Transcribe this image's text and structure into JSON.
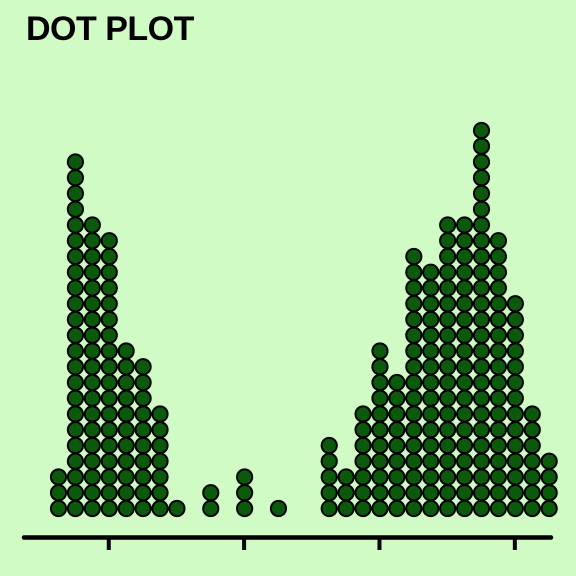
{
  "chart_data": {
    "type": "dotplot",
    "title": "DOT PLOT",
    "xlabel": "",
    "ylabel": "",
    "tick_labels_shown": false,
    "grid": false,
    "legend": "none",
    "colors": {
      "background": "#d1fbc5",
      "dot_fill": "#0b5a0b",
      "dot_stroke": "#000000",
      "axis": "#000000"
    },
    "columns": [
      {
        "bin": 0,
        "count": 3
      },
      {
        "bin": 1,
        "count": 23
      },
      {
        "bin": 2,
        "count": 19
      },
      {
        "bin": 3,
        "count": 18
      },
      {
        "bin": 4,
        "count": 11
      },
      {
        "bin": 5,
        "count": 10
      },
      {
        "bin": 6,
        "count": 7
      },
      {
        "bin": 7,
        "count": 1
      },
      {
        "bin": 9,
        "count": 2
      },
      {
        "bin": 11,
        "count": 3
      },
      {
        "bin": 13,
        "count": 1
      },
      {
        "bin": 16,
        "count": 5
      },
      {
        "bin": 17,
        "count": 3
      },
      {
        "bin": 18,
        "count": 7
      },
      {
        "bin": 19,
        "count": 11
      },
      {
        "bin": 20,
        "count": 9
      },
      {
        "bin": 21,
        "count": 17
      },
      {
        "bin": 22,
        "count": 16
      },
      {
        "bin": 23,
        "count": 19
      },
      {
        "bin": 24,
        "count": 19
      },
      {
        "bin": 25,
        "count": 25
      },
      {
        "bin": 26,
        "count": 18
      },
      {
        "bin": 27,
        "count": 14
      },
      {
        "bin": 28,
        "count": 7
      },
      {
        "bin": 29,
        "count": 4
      }
    ],
    "ticks": [
      3,
      11,
      19,
      27
    ]
  }
}
